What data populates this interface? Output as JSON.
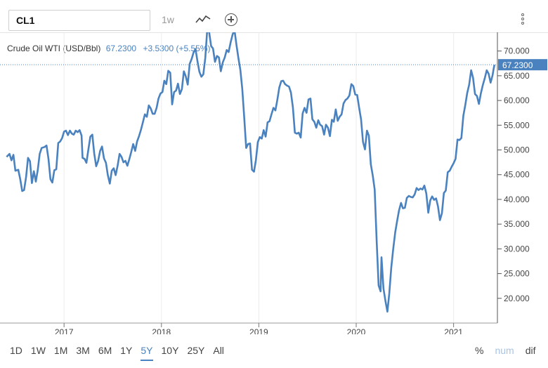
{
  "toolbar": {
    "symbol": "CL1",
    "interval": "1w",
    "chart_type_icon": "line-chart-icon",
    "add_icon": "plus-circle-icon",
    "menu_icon": "vertical-dots-icon"
  },
  "legend": {
    "name": "Crude Oil WTI (USD/Bbl)",
    "value": "67.2300",
    "change": "+3.5300 (+5.55%)"
  },
  "ranges": [
    "1D",
    "1W",
    "1M",
    "3M",
    "6M",
    "1Y",
    "5Y",
    "10Y",
    "25Y",
    "All"
  ],
  "active_range": "5Y",
  "modes": [
    "%",
    "num",
    "dif"
  ],
  "colors": {
    "line": "#4a82bf",
    "label_bg": "#4a82bf"
  },
  "chart_data": {
    "type": "line",
    "x_ticks": [
      "2017",
      "2018",
      "2019",
      "2020",
      "2021"
    ],
    "x_tick_pos": [
      2017,
      2018,
      2019,
      2020,
      2021
    ],
    "y_ticks": [
      "70.000",
      "65.000",
      "60.000",
      "55.000",
      "50.000",
      "45.000",
      "40.000",
      "35.000",
      "30.000",
      "25.000",
      "20.000"
    ],
    "ylim": [
      15,
      73.5
    ],
    "xlim": [
      2016.4,
      2021.45
    ],
    "last_label": "67.2300",
    "series": [
      {
        "points": [
          [
            2016.41,
            48.6
          ],
          [
            2016.44,
            49.2
          ],
          [
            2016.46,
            47.9
          ],
          [
            2016.48,
            49.0
          ],
          [
            2016.5,
            45.8
          ],
          [
            2016.53,
            46.0
          ],
          [
            2016.55,
            44.1
          ],
          [
            2016.57,
            41.7
          ],
          [
            2016.59,
            41.9
          ],
          [
            2016.61,
            44.5
          ],
          [
            2016.63,
            48.4
          ],
          [
            2016.65,
            47.7
          ],
          [
            2016.67,
            43.3
          ],
          [
            2016.69,
            45.7
          ],
          [
            2016.71,
            43.6
          ],
          [
            2016.73,
            45.9
          ],
          [
            2016.75,
            49.2
          ],
          [
            2016.77,
            50.4
          ],
          [
            2016.8,
            50.6
          ],
          [
            2016.82,
            50.9
          ],
          [
            2016.84,
            48.2
          ],
          [
            2016.86,
            44.1
          ],
          [
            2016.88,
            43.4
          ],
          [
            2016.9,
            45.9
          ],
          [
            2016.92,
            46.1
          ],
          [
            2016.94,
            51.4
          ],
          [
            2016.96,
            51.7
          ],
          [
            2016.98,
            52.4
          ],
          [
            2017.0,
            53.7
          ],
          [
            2017.02,
            53.9
          ],
          [
            2017.04,
            53.0
          ],
          [
            2017.06,
            53.9
          ],
          [
            2017.08,
            53.3
          ],
          [
            2017.1,
            53.1
          ],
          [
            2017.12,
            53.9
          ],
          [
            2017.14,
            53.6
          ],
          [
            2017.16,
            54.0
          ],
          [
            2017.18,
            52.9
          ],
          [
            2017.19,
            48.4
          ],
          [
            2017.21,
            48.2
          ],
          [
            2017.23,
            47.4
          ],
          [
            2017.25,
            50.1
          ],
          [
            2017.27,
            52.7
          ],
          [
            2017.29,
            53.1
          ],
          [
            2017.31,
            49.3
          ],
          [
            2017.33,
            46.7
          ],
          [
            2017.35,
            47.8
          ],
          [
            2017.37,
            49.8
          ],
          [
            2017.39,
            50.7
          ],
          [
            2017.41,
            48.3
          ],
          [
            2017.43,
            47.4
          ],
          [
            2017.45,
            44.9
          ],
          [
            2017.47,
            43.2
          ],
          [
            2017.49,
            45.8
          ],
          [
            2017.51,
            46.3
          ],
          [
            2017.53,
            44.9
          ],
          [
            2017.55,
            46.8
          ],
          [
            2017.57,
            49.2
          ],
          [
            2017.59,
            48.6
          ],
          [
            2017.61,
            47.5
          ],
          [
            2017.63,
            47.8
          ],
          [
            2017.65,
            46.8
          ],
          [
            2017.67,
            48.1
          ],
          [
            2017.69,
            49.6
          ],
          [
            2017.71,
            51.2
          ],
          [
            2017.73,
            49.8
          ],
          [
            2017.75,
            51.7
          ],
          [
            2017.77,
            52.8
          ],
          [
            2017.79,
            54.1
          ],
          [
            2017.81,
            55.6
          ],
          [
            2017.83,
            57.2
          ],
          [
            2017.85,
            56.7
          ],
          [
            2017.87,
            59.0
          ],
          [
            2017.89,
            58.4
          ],
          [
            2017.91,
            57.3
          ],
          [
            2017.93,
            57.3
          ],
          [
            2017.95,
            58.5
          ],
          [
            2017.97,
            60.4
          ],
          [
            2017.99,
            61.4
          ],
          [
            2018.01,
            61.7
          ],
          [
            2018.03,
            64.0
          ],
          [
            2018.05,
            63.3
          ],
          [
            2018.07,
            66.0
          ],
          [
            2018.09,
            65.6
          ],
          [
            2018.11,
            59.2
          ],
          [
            2018.13,
            61.7
          ],
          [
            2018.15,
            62.0
          ],
          [
            2018.17,
            63.4
          ],
          [
            2018.19,
            61.3
          ],
          [
            2018.21,
            62.3
          ],
          [
            2018.23,
            65.9
          ],
          [
            2018.25,
            64.9
          ],
          [
            2018.27,
            63.2
          ],
          [
            2018.29,
            67.4
          ],
          [
            2018.31,
            68.4
          ],
          [
            2018.33,
            69.7
          ],
          [
            2018.35,
            70.4
          ],
          [
            2018.37,
            67.9
          ],
          [
            2018.39,
            65.8
          ],
          [
            2018.41,
            64.8
          ],
          [
            2018.43,
            65.3
          ],
          [
            2018.45,
            68.6
          ],
          [
            2018.47,
            74.2
          ],
          [
            2018.49,
            73.8
          ],
          [
            2018.51,
            71.0
          ],
          [
            2018.53,
            70.5
          ],
          [
            2018.55,
            67.8
          ],
          [
            2018.57,
            69.0
          ],
          [
            2018.59,
            68.7
          ],
          [
            2018.61,
            65.9
          ],
          [
            2018.63,
            67.7
          ],
          [
            2018.65,
            68.7
          ],
          [
            2018.67,
            70.2
          ],
          [
            2018.69,
            69.8
          ],
          [
            2018.71,
            71.7
          ],
          [
            2018.73,
            73.3
          ],
          [
            2018.75,
            74.3
          ],
          [
            2018.77,
            71.3
          ],
          [
            2018.79,
            68.6
          ],
          [
            2018.81,
            66.2
          ],
          [
            2018.83,
            62.4
          ],
          [
            2018.85,
            56.6
          ],
          [
            2018.87,
            50.4
          ],
          [
            2018.89,
            51.2
          ],
          [
            2018.91,
            51.3
          ],
          [
            2018.93,
            46.0
          ],
          [
            2018.95,
            45.6
          ],
          [
            2018.97,
            47.9
          ],
          [
            2018.99,
            51.6
          ],
          [
            2019.01,
            52.6
          ],
          [
            2019.03,
            52.3
          ],
          [
            2019.05,
            54.0
          ],
          [
            2019.07,
            52.7
          ],
          [
            2019.09,
            55.6
          ],
          [
            2019.11,
            55.8
          ],
          [
            2019.13,
            57.2
          ],
          [
            2019.15,
            58.5
          ],
          [
            2019.17,
            58.0
          ],
          [
            2019.19,
            60.1
          ],
          [
            2019.21,
            62.6
          ],
          [
            2019.23,
            63.9
          ],
          [
            2019.25,
            64.0
          ],
          [
            2019.27,
            63.3
          ],
          [
            2019.29,
            63.0
          ],
          [
            2019.31,
            62.8
          ],
          [
            2019.33,
            61.6
          ],
          [
            2019.35,
            58.6
          ],
          [
            2019.37,
            53.5
          ],
          [
            2019.39,
            53.3
          ],
          [
            2019.41,
            53.5
          ],
          [
            2019.43,
            52.5
          ],
          [
            2019.45,
            57.4
          ],
          [
            2019.47,
            58.5
          ],
          [
            2019.49,
            57.5
          ],
          [
            2019.51,
            60.2
          ],
          [
            2019.53,
            60.4
          ],
          [
            2019.55,
            56.2
          ],
          [
            2019.57,
            55.7
          ],
          [
            2019.59,
            54.5
          ],
          [
            2019.61,
            56.0
          ],
          [
            2019.63,
            55.1
          ],
          [
            2019.65,
            54.8
          ],
          [
            2019.67,
            53.1
          ],
          [
            2019.69,
            55.1
          ],
          [
            2019.71,
            54.5
          ],
          [
            2019.73,
            52.8
          ],
          [
            2019.75,
            56.1
          ],
          [
            2019.77,
            55.7
          ],
          [
            2019.79,
            58.2
          ],
          [
            2019.81,
            55.9
          ],
          [
            2019.83,
            56.7
          ],
          [
            2019.85,
            57.2
          ],
          [
            2019.87,
            59.4
          ],
          [
            2019.89,
            60.1
          ],
          [
            2019.91,
            60.4
          ],
          [
            2019.93,
            61.0
          ],
          [
            2019.95,
            63.3
          ],
          [
            2019.97,
            62.9
          ],
          [
            2019.99,
            61.2
          ],
          [
            2020.01,
            61.1
          ],
          [
            2020.03,
            58.5
          ],
          [
            2020.05,
            56.2
          ],
          [
            2020.07,
            51.6
          ],
          [
            2020.09,
            50.1
          ],
          [
            2020.11,
            53.9
          ],
          [
            2020.13,
            52.9
          ],
          [
            2020.15,
            47.1
          ],
          [
            2020.17,
            44.8
          ],
          [
            2020.19,
            42.0
          ],
          [
            2020.21,
            31.7
          ],
          [
            2020.23,
            22.6
          ],
          [
            2020.25,
            21.4
          ],
          [
            2020.26,
            28.3
          ],
          [
            2020.28,
            22.0
          ],
          [
            2020.3,
            19.5
          ],
          [
            2020.32,
            17.3
          ],
          [
            2020.34,
            21.0
          ],
          [
            2020.36,
            26.2
          ],
          [
            2020.38,
            30.0
          ],
          [
            2020.4,
            33.3
          ],
          [
            2020.42,
            35.6
          ],
          [
            2020.44,
            37.8
          ],
          [
            2020.46,
            39.3
          ],
          [
            2020.48,
            38.2
          ],
          [
            2020.5,
            38.3
          ],
          [
            2020.52,
            40.3
          ],
          [
            2020.54,
            40.7
          ],
          [
            2020.56,
            40.5
          ],
          [
            2020.58,
            40.4
          ],
          [
            2020.6,
            41.0
          ],
          [
            2020.62,
            42.3
          ],
          [
            2020.64,
            41.9
          ],
          [
            2020.66,
            42.2
          ],
          [
            2020.68,
            42.0
          ],
          [
            2020.7,
            42.8
          ],
          [
            2020.72,
            41.2
          ],
          [
            2020.74,
            37.3
          ],
          [
            2020.76,
            39.8
          ],
          [
            2020.78,
            40.6
          ],
          [
            2020.8,
            39.9
          ],
          [
            2020.82,
            40.2
          ],
          [
            2020.84,
            38.6
          ],
          [
            2020.86,
            35.8
          ],
          [
            2020.88,
            37.2
          ],
          [
            2020.9,
            41.3
          ],
          [
            2020.92,
            41.8
          ],
          [
            2020.94,
            45.5
          ],
          [
            2020.96,
            45.8
          ],
          [
            2020.98,
            46.6
          ],
          [
            2021.0,
            47.3
          ],
          [
            2021.02,
            48.2
          ],
          [
            2021.04,
            52.1
          ],
          [
            2021.06,
            52.0
          ],
          [
            2021.08,
            52.4
          ],
          [
            2021.1,
            56.9
          ],
          [
            2021.12,
            59.1
          ],
          [
            2021.14,
            61.5
          ],
          [
            2021.16,
            63.2
          ],
          [
            2021.18,
            66.1
          ],
          [
            2021.2,
            64.6
          ],
          [
            2021.22,
            61.3
          ],
          [
            2021.24,
            60.9
          ],
          [
            2021.26,
            59.3
          ],
          [
            2021.28,
            61.4
          ],
          [
            2021.3,
            63.1
          ],
          [
            2021.32,
            64.5
          ],
          [
            2021.34,
            66.1
          ],
          [
            2021.36,
            65.4
          ],
          [
            2021.38,
            63.6
          ],
          [
            2021.4,
            65.1
          ],
          [
            2021.41,
            66.3
          ],
          [
            2021.42,
            67.23
          ]
        ]
      }
    ]
  }
}
